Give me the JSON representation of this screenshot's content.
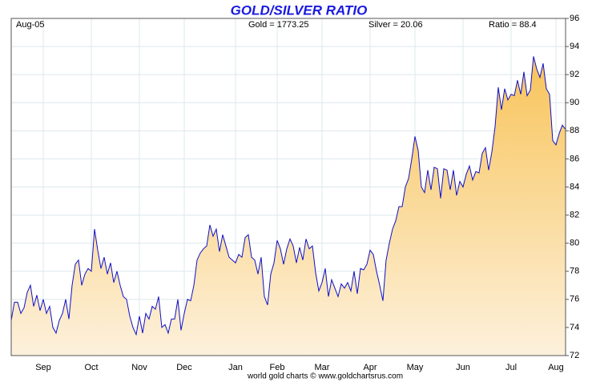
{
  "chart_data": {
    "type": "area",
    "title": "GOLD/SILVER RATIO",
    "header": {
      "date": "Aug-05",
      "gold": "Gold = 1773.25",
      "silver": "Silver = 20.06",
      "ratio": "Ratio = 88.4"
    },
    "footer": "world gold charts © www.goldchartsrus.com",
    "categories": [
      null,
      null,
      null,
      null,
      null,
      null,
      null,
      null,
      null,
      null,
      "Sep",
      null,
      null,
      null,
      null,
      null,
      null,
      null,
      null,
      null,
      null,
      null,
      null,
      null,
      null,
      "Oct",
      null,
      null,
      null,
      null,
      null,
      null,
      null,
      null,
      null,
      null,
      null,
      null,
      null,
      null,
      "Nov",
      null,
      null,
      null,
      null,
      null,
      null,
      null,
      null,
      null,
      null,
      null,
      null,
      null,
      "Dec",
      null,
      null,
      null,
      null,
      null,
      null,
      null,
      null,
      null,
      null,
      null,
      null,
      null,
      null,
      null,
      "Jan",
      null,
      null,
      null,
      null,
      null,
      null,
      null,
      null,
      null,
      null,
      null,
      null,
      "Feb",
      null,
      null,
      null,
      null,
      null,
      null,
      null,
      null,
      null,
      null,
      null,
      null,
      null,
      "Mar",
      null,
      null,
      null,
      null,
      null,
      null,
      null,
      null,
      null,
      null,
      null,
      null,
      null,
      null,
      "Apr",
      null,
      null,
      null,
      null,
      null,
      null,
      null,
      null,
      null,
      null,
      null,
      null,
      null,
      "May",
      null,
      null,
      null,
      null,
      null,
      null,
      null,
      null,
      null,
      null,
      null,
      null,
      null,
      null,
      "Jun",
      null,
      null,
      null,
      null,
      null,
      null,
      null,
      null,
      null,
      null,
      null,
      null,
      null,
      null,
      "Jul",
      null,
      null,
      null,
      null,
      null,
      null,
      null,
      null,
      null,
      null,
      null,
      null,
      null,
      "Aug",
      null,
      null,
      null
    ],
    "values": [
      74.5,
      75.8,
      75.8,
      75,
      75.4,
      76.5,
      77,
      75.5,
      76.3,
      75.2,
      76,
      75,
      75.5,
      74,
      73.6,
      74.5,
      75,
      76,
      74.6,
      77,
      78.5,
      78.8,
      77,
      77.8,
      78.2,
      78,
      81,
      79.5,
      78.2,
      79,
      77.8,
      78.6,
      77.2,
      78,
      77,
      76.2,
      76,
      74.8,
      74,
      73.5,
      74.8,
      73.6,
      75,
      74.6,
      75.5,
      75.3,
      76.2,
      74,
      74.2,
      73.6,
      74.6,
      74.6,
      76,
      73.8,
      75,
      76,
      75.9,
      77,
      78.8,
      79.3,
      79.6,
      79.8,
      81.3,
      80.5,
      81,
      79.4,
      80.6,
      79.8,
      79,
      78.8,
      78.6,
      79.2,
      79,
      80.4,
      80.6,
      79,
      78.8,
      77.8,
      79,
      76.2,
      75.6,
      77.8,
      78.6,
      80.2,
      79.6,
      78.5,
      79.6,
      80.3,
      79.8,
      78.6,
      79.7,
      78.8,
      80.3,
      79.6,
      79.8,
      77.9,
      76.6,
      77.2,
      78.2,
      76.2,
      77.4,
      76.8,
      76.2,
      77.1,
      76.8,
      77.2,
      76.6,
      78,
      76.4,
      78.2,
      78.1,
      78.5,
      79.5,
      79.2,
      78,
      77,
      75.9,
      78.8,
      80,
      81,
      81.6,
      82.6,
      82.6,
      84,
      84.6,
      86,
      87.6,
      86.6,
      84,
      83.6,
      85.2,
      83.8,
      85.4,
      85.3,
      83.2,
      85.3,
      85.2,
      83.8,
      85.2,
      83.4,
      84.4,
      84,
      84.9,
      85.5,
      84.5,
      85.1,
      85,
      86.4,
      86.8,
      85.2,
      86.5,
      88.3,
      91.1,
      89.5,
      91,
      90.2,
      90.6,
      90.5,
      91.6,
      90.6,
      92.2,
      90.5,
      90.9,
      93.3,
      92.4,
      91.8,
      92.8,
      91,
      90.6,
      87.3,
      87,
      87.8,
      88.4,
      88.1
    ],
    "color": "#1010c8",
    "ylim": [
      72,
      96
    ],
    "yticks": [
      72,
      74,
      76,
      78,
      80,
      82,
      84,
      86,
      88,
      90,
      92,
      94,
      96
    ],
    "grid": true
  }
}
